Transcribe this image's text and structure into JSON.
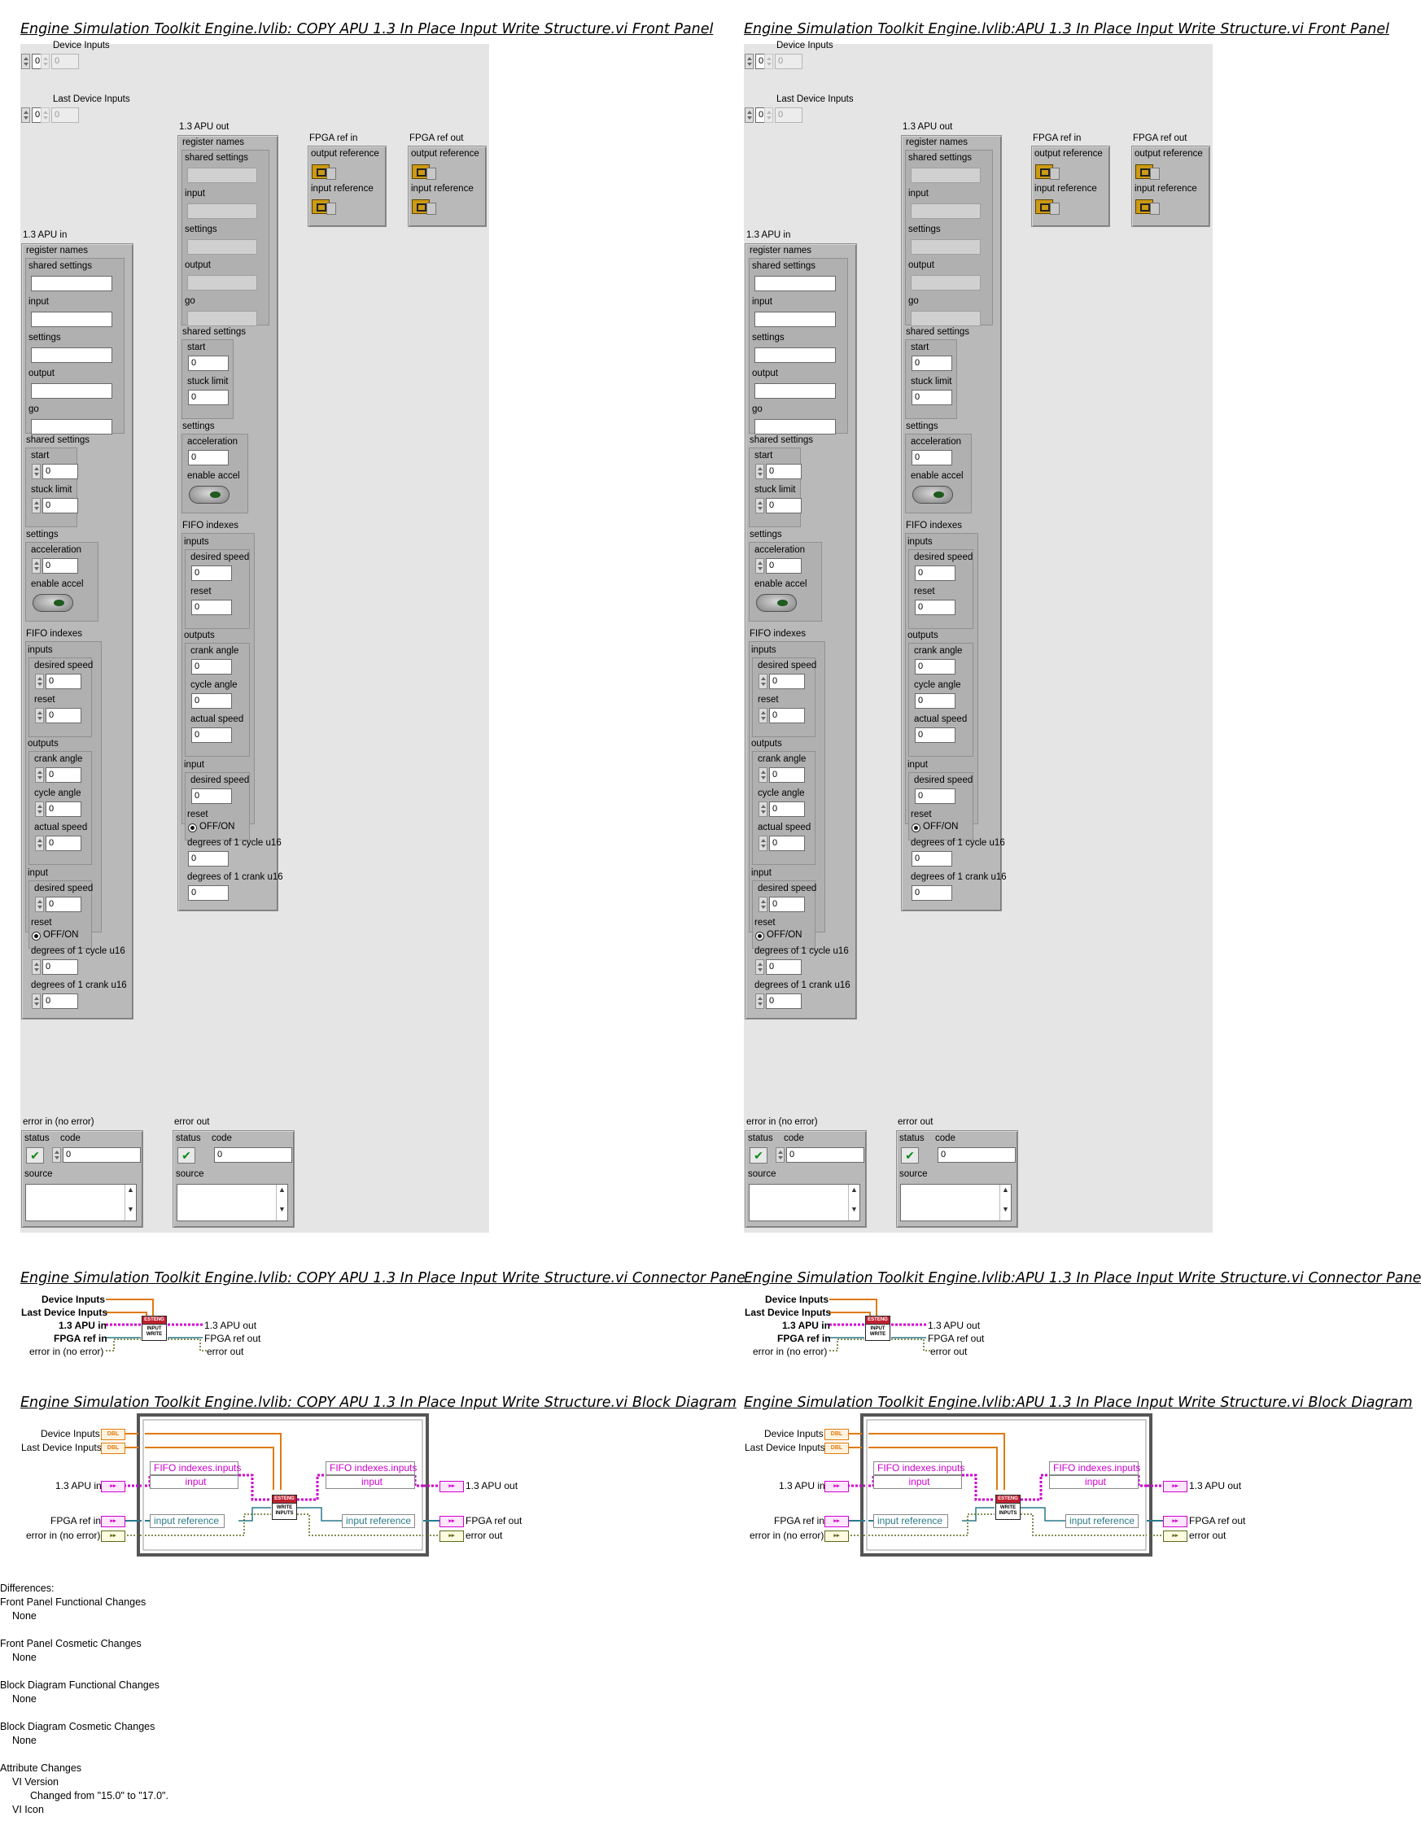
{
  "left_title_fp": "Engine Simulation Toolkit Engine.lvlib:  COPY  APU 1.3 In Place Input Write Structure.vi Front Panel",
  "right_title_fp": "Engine Simulation Toolkit Engine.lvlib:APU 1.3 In Place Input Write Structure.vi Front Panel",
  "left_title_cp": "Engine Simulation Toolkit Engine.lvlib:  COPY  APU 1.3 In Place Input Write Structure.vi Connector Pane",
  "right_title_cp": "Engine Simulation Toolkit Engine.lvlib:APU 1.3 In Place Input Write Structure.vi Connector Pane",
  "left_title_bd": "Engine Simulation Toolkit Engine.lvlib:  COPY  APU 1.3 In Place Input Write Structure.vi Block Diagram",
  "right_title_bd": "Engine Simulation Toolkit Engine.lvlib:APU 1.3 In Place Input Write Structure.vi Block Diagram",
  "panel": {
    "device_inputs": "Device Inputs",
    "last_device_inputs": "Last Device Inputs",
    "zero": "0",
    "apu_in": "1.3 APU in",
    "apu_out": "1.3 APU out",
    "fpga_in": "FPGA ref in",
    "fpga_out": "FPGA ref out",
    "output_reference": "output reference",
    "input_reference": "input reference",
    "register_names": "register names",
    "shared_settings": "shared settings",
    "input": "input",
    "settings": "settings",
    "output": "output",
    "go": "go",
    "start": "start",
    "stuck_limit": "stuck limit",
    "acceleration": "acceleration",
    "enable_accel": "enable accel",
    "fifo_indexes": "FIFO indexes",
    "inputs": "inputs",
    "desired_speed": "desired speed",
    "reset": "reset",
    "outputs": "outputs",
    "crank_angle": "crank angle",
    "cycle_angle": "cycle angle",
    "actual_speed": "actual speed",
    "off_on": "OFF/ON",
    "deg_cycle": "degrees of 1 cycle u16",
    "deg_crank": "degrees of 1 crank u16",
    "error_in": "error in (no error)",
    "error_out": "error out",
    "status": "status",
    "code": "code",
    "source": "source"
  },
  "connector": {
    "device_inputs": "Device Inputs",
    "last_device_inputs": "Last Device Inputs",
    "apu_in": "1.3 APU in",
    "fpga_in": "FPGA ref in",
    "error_in": "error in (no error)",
    "apu_out": "1.3 APU out",
    "fpga_out": "FPGA ref out",
    "error_out": "error out",
    "icon_head": "ESTENG",
    "icon_body": "INPUT WRITE"
  },
  "diagram": {
    "device_inputs": "Device Inputs",
    "last_device_inputs": "Last Device Inputs",
    "apu_in": "1.3 APU in",
    "fpga_in": "FPGA ref in",
    "error_in": "error in (no error)",
    "apu_out": "1.3 APU out",
    "fpga_out": "FPGA ref out",
    "error_out": "error out",
    "fifo_inputs": "FIFO indexes.inputs",
    "input": "input",
    "input_reference": "input reference",
    "dbl": "DBL",
    "icon_head": "ESTENG",
    "icon_body": "WRITE INPUTS"
  },
  "differences": {
    "heading": "Differences:",
    "fp_func": "Front Panel Functional Changes",
    "fp_func_val": "None",
    "fp_cos": "Front Panel Cosmetic Changes",
    "fp_cos_val": "None",
    "bd_func": "Block Diagram Functional Changes",
    "bd_func_val": "None",
    "bd_cos": "Block Diagram Cosmetic Changes",
    "bd_cos_val": "None",
    "attr": "Attribute Changes",
    "vi_version": "VI Version",
    "changed": "Changed from \"15.0\" to \"17.0\".",
    "vi_icon": "VI Icon"
  },
  "colors": {
    "orange": "#e07a10",
    "magenta": "#d000d0",
    "error_wire": "#5a6a1a",
    "fpga_wire": "#2a7a8a",
    "teal": "#2a7a8a"
  }
}
